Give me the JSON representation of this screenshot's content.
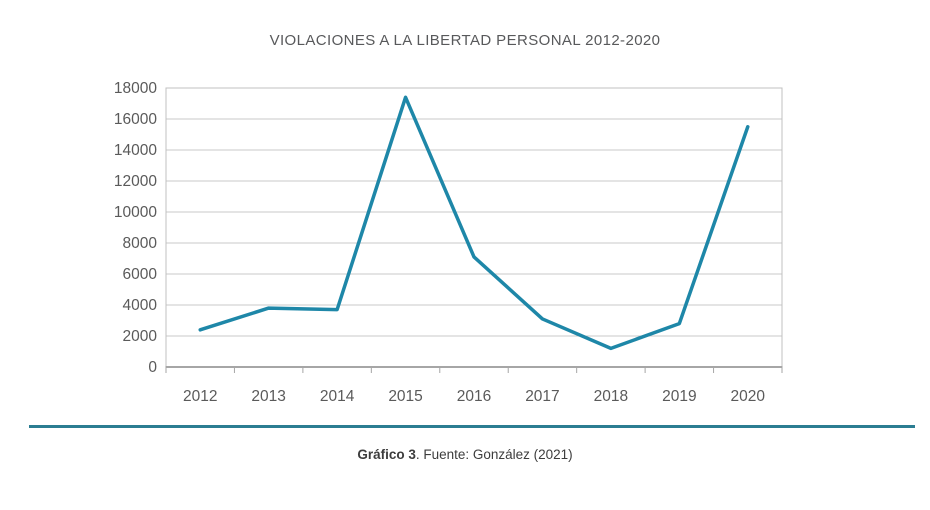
{
  "page": {
    "caption_bold": "Gráfico 3",
    "caption_rest": ". Fuente: González (2021)"
  },
  "chart_data": {
    "type": "line",
    "title": "VIOLACIONES A LA LIBERTAD PERSONAL 2012-2020",
    "categories": [
      "2012",
      "2013",
      "2014",
      "2015",
      "2016",
      "2017",
      "2018",
      "2019",
      "2020"
    ],
    "series": [
      {
        "name": "violaciones-a-la-libertad-personal",
        "values": [
          2400,
          3800,
          3700,
          17400,
          7100,
          3100,
          1200,
          2800,
          15500
        ]
      }
    ],
    "xlabel": "",
    "ylabel": "",
    "ylim": [
      0,
      18000
    ],
    "yticks": [
      0,
      2000,
      4000,
      6000,
      8000,
      10000,
      12000,
      14000,
      16000,
      18000
    ],
    "grid": true,
    "legend_position": "none",
    "line_color": "#1e87a8",
    "gridline_color": "#c8c8c8",
    "plot_border_color": "#c0c0c0",
    "axis_line_color": "#a6a6a6",
    "tick_label_color": "#5a5a5a",
    "divider_color": "#2b7d92"
  }
}
